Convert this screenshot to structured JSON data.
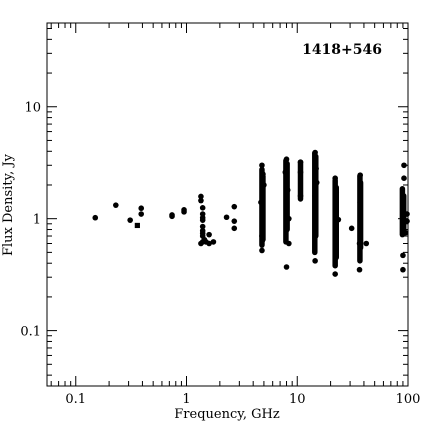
{
  "chart_data": {
    "type": "scatter",
    "title": "1418+546",
    "xlabel": "Frequency, GHz",
    "ylabel": "Flux Density, Jy",
    "x_scale": "log",
    "y_scale": "log",
    "xlim": [
      0.055,
      100
    ],
    "ylim": [
      0.032,
      56
    ],
    "x_ticks": [
      0.1,
      1,
      10,
      100
    ],
    "x_tick_labels": [
      "0.1",
      "1",
      "10",
      "100"
    ],
    "y_ticks": [
      0.1,
      1,
      10
    ],
    "y_tick_labels": [
      "0.1",
      "1",
      "10"
    ],
    "grid": false,
    "legend": "none",
    "marker_color": "#000000",
    "series": [
      {
        "marker": "circle",
        "points": [
          [
            0.15,
            1.02
          ],
          [
            0.23,
            1.32
          ],
          [
            0.31,
            0.97
          ],
          [
            0.39,
            1.24
          ],
          [
            0.39,
            1.1
          ],
          [
            0.74,
            1.08
          ],
          [
            0.74,
            1.05
          ],
          [
            0.95,
            1.2
          ],
          [
            0.95,
            1.15
          ],
          [
            1.35,
            1.58
          ],
          [
            1.35,
            1.45
          ],
          [
            1.4,
            1.25
          ],
          [
            1.4,
            1.1
          ],
          [
            1.4,
            1.02
          ],
          [
            1.4,
            0.97
          ],
          [
            1.4,
            0.85
          ],
          [
            1.4,
            0.78
          ],
          [
            1.4,
            0.74
          ],
          [
            1.4,
            0.7
          ],
          [
            1.4,
            0.62
          ],
          [
            1.35,
            0.6
          ],
          [
            1.45,
            0.65
          ],
          [
            1.5,
            0.62
          ],
          [
            1.6,
            0.6
          ],
          [
            1.6,
            0.72
          ],
          [
            1.75,
            0.62
          ],
          [
            2.3,
            1.03
          ],
          [
            2.7,
            1.28
          ],
          [
            2.7,
            0.95
          ],
          [
            2.7,
            0.82
          ],
          [
            4.8,
            0.52
          ],
          [
            4.8,
            3.0
          ],
          [
            4.9,
            2.5
          ],
          [
            5.0,
            2.0
          ],
          [
            4.7,
            1.4
          ],
          [
            4.8,
            0.7
          ],
          [
            8.0,
            0.37
          ],
          [
            8.0,
            3.4
          ],
          [
            7.8,
            2.6
          ],
          [
            8.2,
            1.8
          ],
          [
            8.4,
            1.0
          ],
          [
            8.4,
            0.6
          ],
          [
            10.7,
            1.6
          ],
          [
            10.7,
            3.2
          ],
          [
            10.7,
            2.6
          ],
          [
            14.5,
            0.42
          ],
          [
            14.5,
            3.9
          ],
          [
            14.8,
            2.8
          ],
          [
            15.0,
            2.1
          ],
          [
            14.5,
            1.6
          ],
          [
            22.0,
            0.32
          ],
          [
            22.0,
            2.3
          ],
          [
            22.5,
            1.7
          ],
          [
            23.5,
            0.98
          ],
          [
            31.0,
            0.82
          ],
          [
            36.5,
            0.35
          ],
          [
            37.0,
            2.45
          ],
          [
            37.0,
            1.4
          ],
          [
            36.5,
            0.6
          ],
          [
            42.0,
            0.6
          ],
          [
            90.0,
            0.35
          ],
          [
            90.0,
            0.47
          ],
          [
            92.0,
            3.0
          ],
          [
            92.0,
            2.3
          ],
          [
            90.0,
            1.5
          ],
          [
            90.0,
            0.8
          ],
          [
            95.0,
            0.75
          ],
          [
            98.0,
            1.1
          ],
          [
            98.0,
            0.95
          ]
        ],
        "bands": [
          {
            "x": 4.8,
            "y_min": 0.58,
            "y_max": 2.75
          },
          {
            "x": 4.9,
            "y_min": 0.65,
            "y_max": 2.4
          },
          {
            "x": 7.9,
            "y_min": 0.62,
            "y_max": 3.3
          },
          {
            "x": 8.1,
            "y_min": 0.8,
            "y_max": 3.1
          },
          {
            "x": 10.7,
            "y_min": 1.5,
            "y_max": 3.2
          },
          {
            "x": 14.4,
            "y_min": 0.5,
            "y_max": 3.85
          },
          {
            "x": 14.7,
            "y_min": 0.7,
            "y_max": 3.6
          },
          {
            "x": 22.0,
            "y_min": 0.38,
            "y_max": 2.2
          },
          {
            "x": 22.5,
            "y_min": 0.45,
            "y_max": 1.9
          },
          {
            "x": 36.8,
            "y_min": 0.42,
            "y_max": 2.4
          },
          {
            "x": 37.3,
            "y_min": 0.55,
            "y_max": 2.1
          },
          {
            "x": 89.0,
            "y_min": 0.72,
            "y_max": 1.85
          },
          {
            "x": 91.5,
            "y_min": 0.78,
            "y_max": 1.6
          }
        ]
      },
      {
        "marker": "square",
        "points": [
          [
            0.36,
            0.87
          ]
        ]
      }
    ]
  }
}
